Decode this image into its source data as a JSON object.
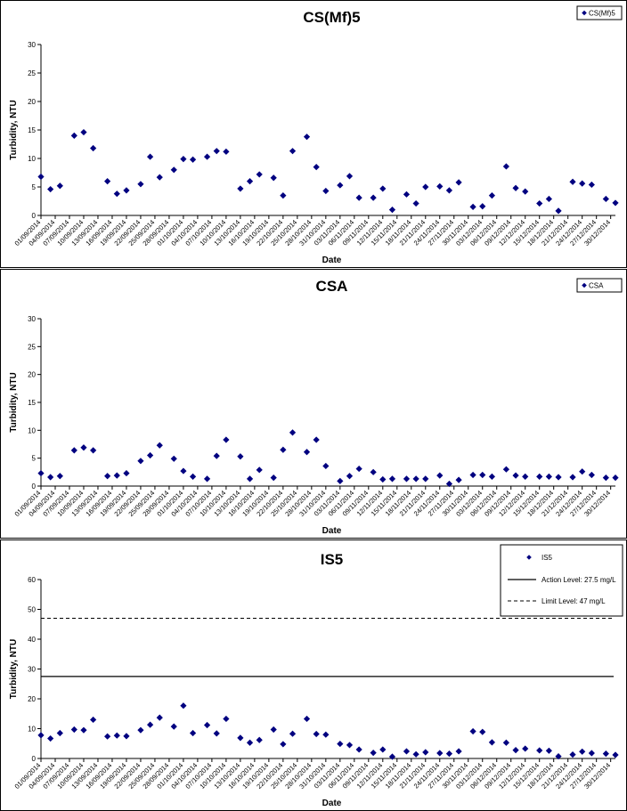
{
  "chart_data": [
    {
      "type": "scatter",
      "title": "CS(Mf)5",
      "xlabel": "Date",
      "ylabel": "Turbidity, NTU",
      "ylim": [
        0,
        30
      ],
      "yticks": [
        "0",
        "5",
        "10",
        "15",
        "20",
        "25",
        "30"
      ],
      "xticks": [
        "01/09/2014",
        "04/09/2014",
        "07/09/2014",
        "10/09/2014",
        "13/09/2014",
        "16/09/2014",
        "19/09/2014",
        "22/09/2014",
        "25/09/2014",
        "28/09/2014",
        "01/10/2014",
        "04/10/2014",
        "07/10/2014",
        "10/10/2014",
        "13/10/2014",
        "16/10/2014",
        "19/10/2014",
        "22/10/2014",
        "25/10/2014",
        "28/10/2014",
        "31/10/2014",
        "03/11/2014",
        "06/11/2014",
        "09/11/2014",
        "12/11/2014",
        "15/11/2014",
        "18/11/2014",
        "21/11/2014",
        "24/11/2014",
        "27/11/2014",
        "30/11/2014",
        "03/12/2014",
        "06/12/2014",
        "09/12/2014",
        "12/12/2014",
        "15/12/2014",
        "18/12/2014",
        "21/12/2014",
        "24/12/2014",
        "27/12/2014",
        "30/12/2014"
      ],
      "legend": "top-right",
      "series": [
        {
          "name": "CS(Mf)5",
          "x": [
            "01/09/2014",
            "03/09/2014",
            "05/09/2014",
            "08/09/2014",
            "10/09/2014",
            "12/09/2014",
            "15/09/2014",
            "17/09/2014",
            "19/09/2014",
            "22/09/2014",
            "24/09/2014",
            "26/09/2014",
            "29/09/2014",
            "01/10/2014",
            "03/10/2014",
            "06/10/2014",
            "08/10/2014",
            "10/10/2014",
            "13/10/2014",
            "15/10/2014",
            "17/10/2014",
            "20/10/2014",
            "22/10/2014",
            "24/10/2014",
            "27/10/2014",
            "29/10/2014",
            "31/10/2014",
            "03/11/2014",
            "05/11/2014",
            "07/11/2014",
            "10/11/2014",
            "12/11/2014",
            "14/11/2014",
            "17/11/2014",
            "19/11/2014",
            "21/11/2014",
            "24/11/2014",
            "26/11/2014",
            "28/11/2014",
            "01/12/2014",
            "03/12/2014",
            "05/12/2014",
            "08/12/2014",
            "10/12/2014",
            "12/12/2014",
            "15/12/2014",
            "17/12/2014",
            "19/12/2014",
            "22/12/2014",
            "24/12/2014",
            "26/12/2014",
            "29/12/2014",
            "31/12/2014"
          ],
          "values": [
            6.8,
            4.6,
            5.2,
            14.0,
            14.6,
            11.8,
            6.0,
            3.8,
            4.4,
            5.5,
            10.3,
            6.7,
            8.0,
            9.9,
            9.8,
            10.3,
            11.3,
            11.2,
            4.7,
            6.0,
            7.2,
            6.6,
            3.5,
            11.3,
            13.8,
            8.5,
            4.3,
            5.3,
            6.9,
            3.1,
            3.1,
            4.7,
            1.0,
            3.7,
            2.1,
            5.0,
            5.1,
            4.4,
            5.8,
            1.5,
            1.6,
            3.5,
            8.6,
            4.8,
            4.2,
            2.1,
            2.9,
            0.8,
            5.9,
            5.6,
            5.4,
            2.9,
            2.2
          ]
        }
      ]
    },
    {
      "type": "scatter",
      "title": "CSA",
      "xlabel": "Date",
      "ylabel": "Turbidity, NTU",
      "ylim": [
        0,
        30
      ],
      "yticks": [
        "0",
        "5",
        "10",
        "15",
        "20",
        "25",
        "30"
      ],
      "xticks": [
        "01/09/2014",
        "04/09/2014",
        "07/09/2014",
        "10/09/2014",
        "13/09/2014",
        "16/09/2014",
        "19/09/2014",
        "22/09/2014",
        "25/09/2014",
        "28/09/2014",
        "01/10/2014",
        "04/10/2014",
        "07/10/2014",
        "10/10/2014",
        "13/10/2014",
        "16/10/2014",
        "19/10/2014",
        "22/10/2014",
        "25/10/2014",
        "28/10/2014",
        "31/10/2014",
        "03/11/2014",
        "06/11/2014",
        "09/11/2014",
        "12/11/2014",
        "15/11/2014",
        "18/11/2014",
        "21/11/2014",
        "24/11/2014",
        "27/11/2014",
        "30/11/2014",
        "03/12/2014",
        "06/12/2014",
        "09/12/2014",
        "12/12/2014",
        "15/12/2014",
        "18/12/2014",
        "21/12/2014",
        "24/12/2014",
        "27/12/2014",
        "30/12/2014"
      ],
      "legend": "top-right",
      "series": [
        {
          "name": "CSA",
          "x": [
            "01/09/2014",
            "03/09/2014",
            "05/09/2014",
            "08/09/2014",
            "10/09/2014",
            "12/09/2014",
            "15/09/2014",
            "17/09/2014",
            "19/09/2014",
            "22/09/2014",
            "24/09/2014",
            "26/09/2014",
            "29/09/2014",
            "01/10/2014",
            "03/10/2014",
            "06/10/2014",
            "08/10/2014",
            "10/10/2014",
            "13/10/2014",
            "15/10/2014",
            "17/10/2014",
            "20/10/2014",
            "22/10/2014",
            "24/10/2014",
            "27/10/2014",
            "29/10/2014",
            "31/10/2014",
            "03/11/2014",
            "05/11/2014",
            "07/11/2014",
            "10/11/2014",
            "12/11/2014",
            "14/11/2014",
            "17/11/2014",
            "19/11/2014",
            "21/11/2014",
            "24/11/2014",
            "26/11/2014",
            "28/11/2014",
            "01/12/2014",
            "03/12/2014",
            "05/12/2014",
            "08/12/2014",
            "10/12/2014",
            "12/12/2014",
            "15/12/2014",
            "17/12/2014",
            "19/12/2014",
            "22/12/2014",
            "24/12/2014",
            "26/12/2014",
            "29/12/2014",
            "31/12/2014"
          ],
          "values": [
            2.3,
            1.6,
            1.8,
            6.4,
            6.9,
            6.4,
            1.8,
            1.9,
            2.3,
            4.5,
            5.5,
            7.3,
            4.9,
            2.7,
            1.7,
            1.3,
            5.4,
            8.3,
            5.3,
            1.3,
            2.9,
            1.5,
            6.5,
            9.6,
            6.1,
            8.3,
            3.6,
            0.9,
            1.8,
            3.1,
            2.5,
            1.2,
            1.3,
            1.3,
            1.3,
            1.3,
            1.9,
            0.4,
            1.1,
            2.0,
            2.0,
            1.7,
            3.0,
            1.9,
            1.7,
            1.7,
            1.7,
            1.6,
            1.6,
            2.6,
            2.0,
            1.5,
            1.5
          ]
        }
      ]
    },
    {
      "type": "scatter",
      "title": "IS5",
      "xlabel": "Date",
      "ylabel": "Turbidity, NTU",
      "ylim": [
        0,
        60
      ],
      "yticks": [
        "0",
        "10",
        "20",
        "30",
        "40",
        "50",
        "60"
      ],
      "xticks": [
        "01/09/2014",
        "04/09/2014",
        "07/09/2014",
        "10/09/2014",
        "13/09/2014",
        "16/09/2014",
        "19/09/2014",
        "22/09/2014",
        "25/09/2014",
        "28/09/2014",
        "01/10/2014",
        "04/10/2014",
        "07/10/2014",
        "10/10/2014",
        "13/10/2014",
        "16/10/2014",
        "19/10/2014",
        "22/10/2014",
        "25/10/2014",
        "28/10/2014",
        "31/10/2014",
        "03/11/2014",
        "06/11/2014",
        "09/11/2014",
        "12/11/2014",
        "15/11/2014",
        "18/11/2014",
        "21/11/2014",
        "24/11/2014",
        "27/11/2014",
        "30/11/2014",
        "03/12/2014",
        "06/12/2014",
        "09/12/2014",
        "12/12/2014",
        "15/12/2014",
        "18/12/2014",
        "21/12/2014",
        "24/12/2014",
        "27/12/2014",
        "30/12/2014"
      ],
      "legend": "top-right",
      "series": [
        {
          "name": "IS5",
          "x": [
            "01/09/2014",
            "03/09/2014",
            "05/09/2014",
            "08/09/2014",
            "10/09/2014",
            "12/09/2014",
            "15/09/2014",
            "17/09/2014",
            "19/09/2014",
            "22/09/2014",
            "24/09/2014",
            "26/09/2014",
            "29/09/2014",
            "01/10/2014",
            "03/10/2014",
            "06/10/2014",
            "08/10/2014",
            "10/10/2014",
            "13/10/2014",
            "15/10/2014",
            "17/10/2014",
            "20/10/2014",
            "22/10/2014",
            "24/10/2014",
            "27/10/2014",
            "29/10/2014",
            "31/10/2014",
            "03/11/2014",
            "05/11/2014",
            "07/11/2014",
            "10/11/2014",
            "12/11/2014",
            "14/11/2014",
            "17/11/2014",
            "19/11/2014",
            "21/11/2014",
            "24/11/2014",
            "26/11/2014",
            "28/11/2014",
            "01/12/2014",
            "03/12/2014",
            "05/12/2014",
            "08/12/2014",
            "10/12/2014",
            "12/12/2014",
            "15/12/2014",
            "17/12/2014",
            "19/12/2014",
            "22/12/2014",
            "24/12/2014",
            "26/12/2014",
            "29/12/2014",
            "31/12/2014"
          ],
          "values": [
            7.8,
            6.7,
            8.5,
            9.7,
            9.5,
            13.0,
            7.4,
            7.7,
            7.5,
            9.5,
            11.3,
            13.7,
            10.7,
            17.7,
            8.5,
            11.2,
            8.4,
            13.3,
            6.9,
            5.3,
            6.2,
            9.7,
            4.8,
            8.3,
            13.3,
            8.2,
            8.0,
            4.9,
            4.5,
            3.0,
            1.9,
            3.0,
            0.6,
            2.4,
            1.4,
            2.1,
            1.8,
            1.6,
            2.4,
            9.1,
            8.9,
            5.4,
            5.3,
            2.8,
            3.3,
            2.7,
            2.6,
            0.7,
            1.3,
            2.3,
            1.8,
            1.6,
            1.2
          ]
        },
        {
          "name": "Action Level: 27.5 mg/L",
          "values": [
            27.5
          ]
        },
        {
          "name": "Limit Level: 47 mg/L",
          "values": [
            47
          ]
        }
      ]
    }
  ]
}
